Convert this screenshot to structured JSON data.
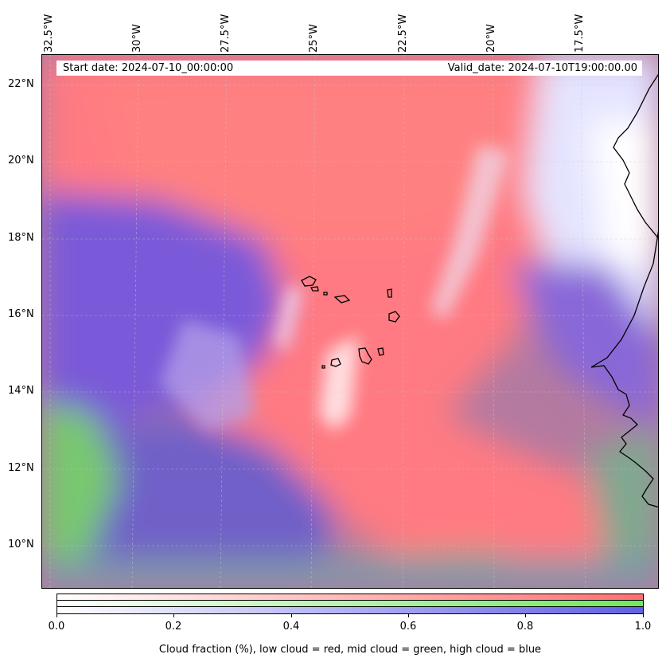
{
  "map": {
    "lon_labels": [
      "32.5°W",
      "30°W",
      "27.5°W",
      "25°W",
      "22.5°W",
      "20°W",
      "17.5°W"
    ],
    "lat_labels": [
      "22°N",
      "20°N",
      "18°N",
      "16°N",
      "14°N",
      "12°N",
      "10°N"
    ],
    "start_date": "Start date: 2024-07-10_00:00:00",
    "valid_date": "Valid_date: 2024-07-10T19:00:00.00",
    "gridlines": true
  },
  "colorbar": {
    "ticks": [
      "0.0",
      "0.2",
      "0.4",
      "0.6",
      "0.8",
      "1.0"
    ],
    "label": "Cloud fraction (%), low cloud = red, mid cloud = green, high cloud = blue",
    "colors": {
      "low": "#ff7070",
      "mid": "#7fe870",
      "high": "#7070f0"
    }
  }
}
